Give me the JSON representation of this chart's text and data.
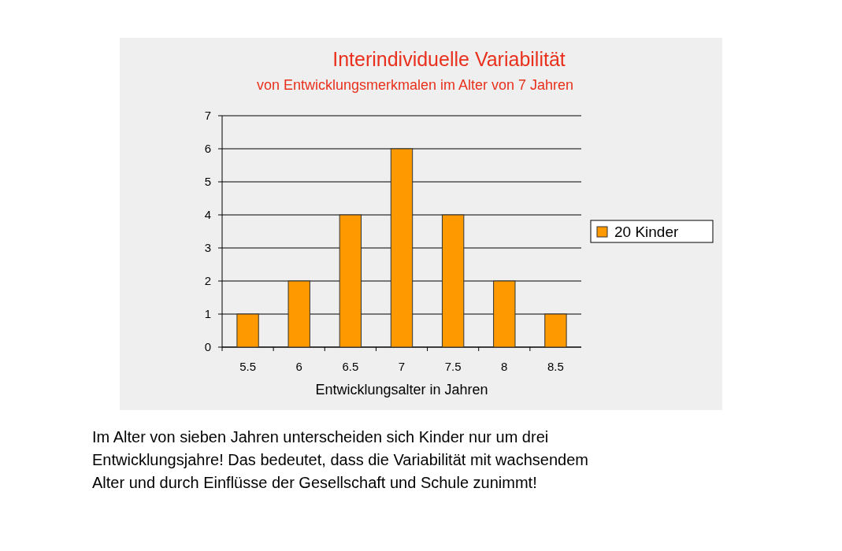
{
  "chart_data": {
    "type": "bar",
    "title": "Interindividuelle Variabilität",
    "subtitle": "von Entwicklungsmerkmalen im Alter von 7 Jahren",
    "xlabel": "Entwicklungsalter in Jahren",
    "categories": [
      "5.5",
      "6",
      "6.5",
      "7",
      "7.5",
      "8",
      "8.5"
    ],
    "series": [
      {
        "name": "20 Kinder",
        "color": "#ff9900",
        "values": [
          1,
          2,
          4,
          6,
          4,
          2,
          1
        ]
      }
    ],
    "ylim": [
      0,
      7
    ],
    "yticks": [
      0,
      1,
      2,
      3,
      4,
      5,
      6,
      7
    ],
    "grid": "y",
    "legend": "right",
    "annotations": [
      "Im Alter von sieben Jahren unterscheiden sich Kinder nur um drei\nEntwicklungsjahre! Das bedeutet, dass die Variabilität mit wachsendem\nAlter und durch Einflüsse der Gesellschaft und Schule zunimmt!"
    ]
  }
}
